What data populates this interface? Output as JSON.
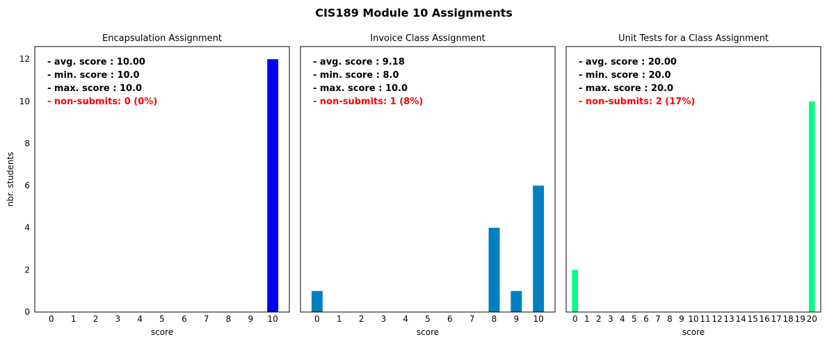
{
  "figure": {
    "suptitle": "CIS189 Module 10 Assignments"
  },
  "chart_data": [
    {
      "type": "bar",
      "title": "Encapsulation Assignment",
      "xlabel": "score",
      "ylabel": "nbr. students",
      "categories": [
        "0",
        "1",
        "2",
        "3",
        "4",
        "5",
        "6",
        "7",
        "8",
        "9",
        "10"
      ],
      "values": [
        0,
        0,
        0,
        0,
        0,
        0,
        0,
        0,
        0,
        0,
        12
      ],
      "ylim": [
        0,
        12.6
      ],
      "yticks": [
        0,
        2,
        4,
        6,
        8,
        10,
        12
      ],
      "show_yticks": true,
      "bar_color": "#0000ff",
      "stats": [
        {
          "text": "- avg. score : 10.00",
          "color": "#000000"
        },
        {
          "text": "- min. score : 10.0",
          "color": "#000000"
        },
        {
          "text": "- max. score : 10.0",
          "color": "#000000"
        },
        {
          "text": "- non-submits: 0 (0%)",
          "color": "#ff0000"
        }
      ]
    },
    {
      "type": "bar",
      "title": "Invoice Class Assignment",
      "xlabel": "score",
      "ylabel": "",
      "categories": [
        "0",
        "1",
        "2",
        "3",
        "4",
        "5",
        "6",
        "7",
        "8",
        "9",
        "10"
      ],
      "values": [
        1,
        0,
        0,
        0,
        0,
        0,
        0,
        0,
        4,
        1,
        6
      ],
      "ylim": [
        0,
        12.6
      ],
      "yticks": [
        0,
        2,
        4,
        6,
        8,
        10,
        12
      ],
      "show_yticks": false,
      "bar_color": "#0080c0",
      "stats": [
        {
          "text": "- avg. score : 9.18",
          "color": "#000000"
        },
        {
          "text": "- min. score : 8.0",
          "color": "#000000"
        },
        {
          "text": "- max. score : 10.0",
          "color": "#000000"
        },
        {
          "text": "- non-submits: 1 (8%)",
          "color": "#ff0000"
        }
      ]
    },
    {
      "type": "bar",
      "title": "Unit Tests for a Class Assignment",
      "xlabel": "score",
      "ylabel": "",
      "categories": [
        "0",
        "1",
        "2",
        "3",
        "4",
        "5",
        "6",
        "7",
        "8",
        "9",
        "10",
        "11",
        "12",
        "13",
        "14",
        "15",
        "16",
        "17",
        "18",
        "19",
        "20"
      ],
      "values": [
        2,
        0,
        0,
        0,
        0,
        0,
        0,
        0,
        0,
        0,
        0,
        0,
        0,
        0,
        0,
        0,
        0,
        0,
        0,
        0,
        10
      ],
      "ylim": [
        0,
        12.6
      ],
      "yticks": [
        0,
        2,
        4,
        6,
        8,
        10,
        12
      ],
      "show_yticks": false,
      "bar_color": "#00ff80",
      "stats": [
        {
          "text": "- avg. score : 20.00",
          "color": "#000000"
        },
        {
          "text": "- min. score : 20.0",
          "color": "#000000"
        },
        {
          "text": "- max. score : 20.0",
          "color": "#000000"
        },
        {
          "text": "- non-submits: 2 (17%)",
          "color": "#ff0000"
        }
      ]
    }
  ]
}
